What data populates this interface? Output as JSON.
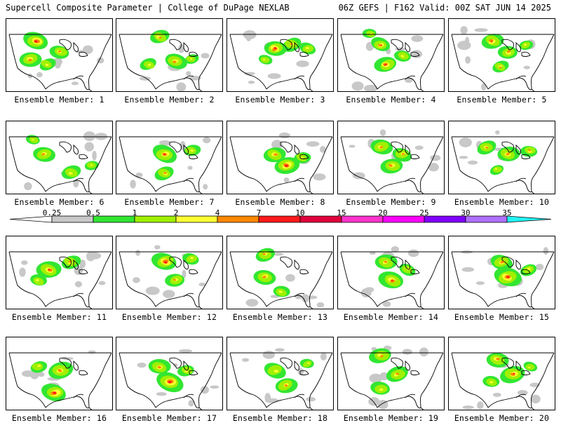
{
  "header": {
    "title_left": "Supercell Composite Parameter | College of DuPage NEXLAB",
    "title_right": "06Z GEFS | F162 Valid: 00Z SAT JUN 14 2025"
  },
  "members": [
    {
      "caption": "Ensemble Member: 1",
      "blobs": [
        [
          0.28,
          0.3,
          0.9,
          1.0
        ],
        [
          0.22,
          0.55,
          0.8,
          0.7
        ],
        [
          0.5,
          0.45,
          0.7,
          0.6
        ],
        [
          0.38,
          0.62,
          0.6,
          0.5
        ]
      ]
    },
    {
      "caption": "Ensemble Member: 2",
      "blobs": [
        [
          0.4,
          0.25,
          0.7,
          0.6
        ],
        [
          0.55,
          0.58,
          0.8,
          0.7
        ],
        [
          0.3,
          0.62,
          0.6,
          0.5
        ],
        [
          0.7,
          0.55,
          0.5,
          0.4
        ]
      ]
    },
    {
      "caption": "Ensemble Member: 3",
      "blobs": [
        [
          0.45,
          0.4,
          0.8,
          1.0
        ],
        [
          0.6,
          0.35,
          0.7,
          0.6
        ],
        [
          0.75,
          0.4,
          0.6,
          0.5
        ],
        [
          0.35,
          0.55,
          0.5,
          0.4
        ]
      ]
    },
    {
      "caption": "Ensemble Member: 4",
      "blobs": [
        [
          0.4,
          0.35,
          0.7,
          0.8
        ],
        [
          0.45,
          0.62,
          0.8,
          0.9
        ],
        [
          0.6,
          0.5,
          0.6,
          0.5
        ],
        [
          0.3,
          0.2,
          0.5,
          0.4
        ]
      ]
    },
    {
      "caption": "Ensemble Member: 5",
      "blobs": [
        [
          0.4,
          0.3,
          0.8,
          0.8
        ],
        [
          0.55,
          0.45,
          0.7,
          0.7
        ],
        [
          0.48,
          0.65,
          0.6,
          0.6
        ],
        [
          0.72,
          0.35,
          0.5,
          0.5
        ]
      ]
    },
    {
      "caption": "Ensemble Member: 6",
      "blobs": [
        [
          0.35,
          0.45,
          0.8,
          0.6
        ],
        [
          0.6,
          0.7,
          0.7,
          0.5
        ],
        [
          0.25,
          0.25,
          0.5,
          0.4
        ],
        [
          0.8,
          0.6,
          0.5,
          0.4
        ]
      ]
    },
    {
      "caption": "Ensemble Member: 7",
      "blobs": [
        [
          0.45,
          0.45,
          0.9,
          0.8
        ],
        [
          0.45,
          0.7,
          0.7,
          0.6
        ],
        [
          0.7,
          0.4,
          0.6,
          0.5
        ]
      ]
    },
    {
      "caption": "Ensemble Member: 8",
      "blobs": [
        [
          0.45,
          0.45,
          0.8,
          0.7
        ],
        [
          0.55,
          0.6,
          0.9,
          1.0
        ],
        [
          0.7,
          0.5,
          0.6,
          0.5
        ]
      ]
    },
    {
      "caption": "Ensemble Member: 9",
      "blobs": [
        [
          0.4,
          0.35,
          0.8,
          0.6
        ],
        [
          0.5,
          0.6,
          0.8,
          0.7
        ],
        [
          0.6,
          0.45,
          0.7,
          0.6
        ]
      ]
    },
    {
      "caption": "Ensemble Member: 10",
      "blobs": [
        [
          0.35,
          0.35,
          0.7,
          0.6
        ],
        [
          0.55,
          0.45,
          0.8,
          0.7
        ],
        [
          0.75,
          0.4,
          0.6,
          0.6
        ],
        [
          0.45,
          0.65,
          0.5,
          0.4
        ]
      ]
    },
    {
      "caption": "Ensemble Member: 11",
      "blobs": [
        [
          0.4,
          0.45,
          0.9,
          0.8
        ],
        [
          0.6,
          0.35,
          0.7,
          0.6
        ],
        [
          0.3,
          0.6,
          0.6,
          0.5
        ]
      ]
    },
    {
      "caption": "Ensemble Member: 12",
      "blobs": [
        [
          0.45,
          0.35,
          0.9,
          1.0
        ],
        [
          0.55,
          0.6,
          0.7,
          0.6
        ],
        [
          0.7,
          0.3,
          0.6,
          0.5
        ]
      ]
    },
    {
      "caption": "Ensemble Member: 13",
      "blobs": [
        [
          0.35,
          0.25,
          0.7,
          0.6
        ],
        [
          0.35,
          0.55,
          0.8,
          0.7
        ],
        [
          0.5,
          0.75,
          0.6,
          0.5
        ]
      ]
    },
    {
      "caption": "Ensemble Member: 14",
      "blobs": [
        [
          0.45,
          0.35,
          0.8,
          0.6
        ],
        [
          0.5,
          0.6,
          0.9,
          0.8
        ],
        [
          0.65,
          0.45,
          0.6,
          0.5
        ]
      ]
    },
    {
      "caption": "Ensemble Member: 15",
      "blobs": [
        [
          0.5,
          0.35,
          0.8,
          0.7
        ],
        [
          0.55,
          0.55,
          1.0,
          0.9
        ],
        [
          0.75,
          0.45,
          0.6,
          0.5
        ]
      ]
    },
    {
      "caption": "Ensemble Member: 16",
      "blobs": [
        [
          0.5,
          0.45,
          0.9,
          0.7
        ],
        [
          0.45,
          0.75,
          0.9,
          1.0
        ],
        [
          0.3,
          0.4,
          0.6,
          0.5
        ]
      ]
    },
    {
      "caption": "Ensemble Member: 17",
      "blobs": [
        [
          0.4,
          0.4,
          0.8,
          0.7
        ],
        [
          0.5,
          0.6,
          1.0,
          1.0
        ],
        [
          0.65,
          0.45,
          0.6,
          0.5
        ]
      ]
    },
    {
      "caption": "Ensemble Member: 18",
      "blobs": [
        [
          0.45,
          0.45,
          0.8,
          0.5
        ],
        [
          0.55,
          0.65,
          0.8,
          0.6
        ],
        [
          0.75,
          0.35,
          0.5,
          0.4
        ]
      ]
    },
    {
      "caption": "Ensemble Member: 19",
      "blobs": [
        [
          0.4,
          0.25,
          0.8,
          0.6
        ],
        [
          0.55,
          0.5,
          0.8,
          0.6
        ],
        [
          0.4,
          0.7,
          0.7,
          0.5
        ]
      ]
    },
    {
      "caption": "Ensemble Member: 20",
      "blobs": [
        [
          0.45,
          0.3,
          0.8,
          0.7
        ],
        [
          0.6,
          0.5,
          0.9,
          0.8
        ],
        [
          0.4,
          0.6,
          0.6,
          0.5
        ],
        [
          0.75,
          0.4,
          0.5,
          0.4
        ]
      ]
    }
  ],
  "colorbar": {
    "labels": [
      "0.25",
      "0.5",
      "1",
      "2",
      "4",
      "7",
      "10",
      "15",
      "20",
      "25",
      "30",
      "35"
    ],
    "colors": [
      "#c8c8c8",
      "#32e632",
      "#a0f000",
      "#ffff33",
      "#ff8800",
      "#ff1a1a",
      "#e0003c",
      "#ff33cc",
      "#ff00ff",
      "#8000ff",
      "#b070ff",
      "#22f5f5"
    ]
  }
}
